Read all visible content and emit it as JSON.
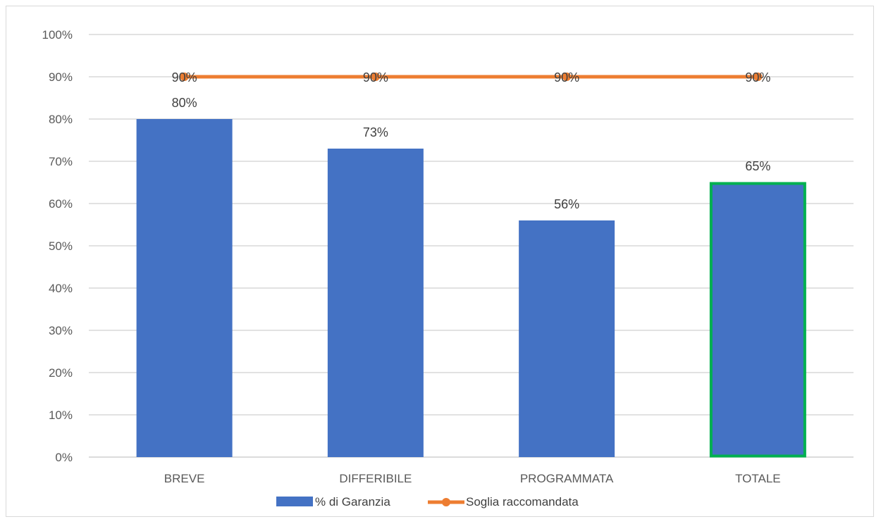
{
  "chart_data": {
    "type": "bar",
    "categories": [
      "BREVE",
      "DIFFERIBILE",
      "PROGRAMMATA",
      "TOTALE"
    ],
    "series": [
      {
        "name": "% di Garanzia",
        "type": "bar",
        "values": [
          0.8,
          0.73,
          0.56,
          0.65
        ],
        "labels": [
          "80%",
          "73%",
          "56%",
          "65%"
        ],
        "color": "#4472c4"
      },
      {
        "name": "Soglia raccomandata",
        "type": "line",
        "values": [
          0.9,
          0.9,
          0.9,
          0.9
        ],
        "labels": [
          "90%",
          "90%",
          "90%",
          "90%"
        ],
        "color": "#ed7d31"
      }
    ],
    "highlight": {
      "category": "TOTALE",
      "outline_color": "#00b050"
    },
    "ylim": [
      0,
      1
    ],
    "yticks": [
      "0%",
      "10%",
      "20%",
      "30%",
      "40%",
      "50%",
      "60%",
      "70%",
      "80%",
      "90%",
      "100%"
    ],
    "grid": true,
    "legend": "bottom",
    "title": "",
    "xlabel": "",
    "ylabel": ""
  }
}
